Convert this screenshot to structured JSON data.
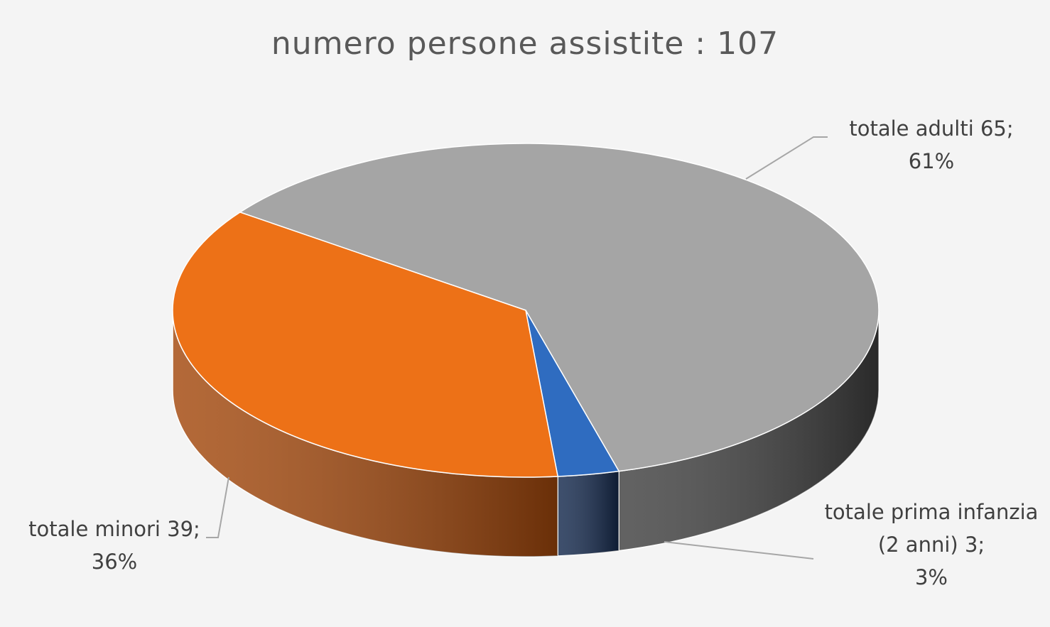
{
  "chart_data": {
    "type": "pie3d",
    "title": "numero persone assistite : 107",
    "categories": [
      "totale adulti",
      "totale prima infanzia (2 anni)",
      "totale minori"
    ],
    "values": [
      65,
      3,
      39
    ],
    "value_labels": [
      "65;",
      "3;",
      "39;"
    ],
    "percentages": [
      61,
      3,
      36
    ],
    "percent_labels": [
      "61%",
      "3%",
      "36%"
    ],
    "colors": [
      "#a5a5a5",
      "#2f6cc0",
      "#ed7117"
    ],
    "side_colors": [
      "#404040",
      "#14294d",
      "#a3480c"
    ]
  }
}
